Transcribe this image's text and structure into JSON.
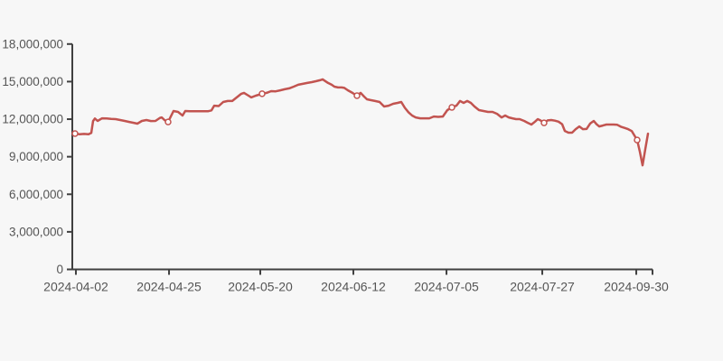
{
  "page": {
    "background": "#f7f7f7"
  },
  "chart_data": {
    "type": "line",
    "title": "",
    "xlabel": "",
    "ylabel": "",
    "ylim": [
      0,
      18000000
    ],
    "grid": false,
    "legend": "none",
    "line_color": "#c25450",
    "marker_fill": "#ffffff",
    "axis_color": "#404040",
    "label_color": "#555555",
    "background": "#f7f7f7",
    "y_ticks": [
      {
        "value": 0,
        "label": "0"
      },
      {
        "value": 3000000,
        "label": "3,000,000"
      },
      {
        "value": 6000000,
        "label": "6,000,000"
      },
      {
        "value": 9000000,
        "label": "9,000,000"
      },
      {
        "value": 12000000,
        "label": "12,000,000"
      },
      {
        "value": 15000000,
        "label": "15,000,000"
      },
      {
        "value": 18000000,
        "label": "18,000,000"
      }
    ],
    "x_ticks": [
      {
        "pos": 0.62,
        "label": "2024-04-02"
      },
      {
        "pos": 16.67,
        "label": "2024-04-25"
      },
      {
        "pos": 32.4,
        "label": "2024-05-20"
      },
      {
        "pos": 48.44,
        "label": "2024-06-12"
      },
      {
        "pos": 64.49,
        "label": "2024-07-05"
      },
      {
        "pos": 81.0,
        "label": "2024-07-27"
      },
      {
        "pos": 97.2,
        "label": "2024-09-30"
      }
    ],
    "labeled_points": [
      {
        "date": "2024-04-02",
        "value": 10850000
      },
      {
        "date": "2024-04-25",
        "value": 11780000
      },
      {
        "date": "2024-05-20",
        "value": 14030000
      },
      {
        "date": "2024-06-12",
        "value": 13880000
      },
      {
        "date": "2024-07-05",
        "value": 12940000
      },
      {
        "date": "2024-07-27",
        "value": 11710000
      },
      {
        "date": "2024-09-30",
        "value": 10340000
      }
    ],
    "points": [
      [
        0.47,
        10850000,
        1
      ],
      [
        1.25,
        10800000
      ],
      [
        2.02,
        10820000
      ],
      [
        2.8,
        10800000
      ],
      [
        3.27,
        10900000
      ],
      [
        3.58,
        11850000
      ],
      [
        3.89,
        12050000
      ],
      [
        4.36,
        11860000
      ],
      [
        5.14,
        12070000
      ],
      [
        5.92,
        12050000
      ],
      [
        6.7,
        12020000
      ],
      [
        7.48,
        12000000
      ],
      [
        8.26,
        11930000
      ],
      [
        9.03,
        11860000
      ],
      [
        9.81,
        11780000
      ],
      [
        10.59,
        11710000
      ],
      [
        11.21,
        11640000
      ],
      [
        11.99,
        11860000
      ],
      [
        12.77,
        11930000
      ],
      [
        13.55,
        11850000
      ],
      [
        14.33,
        11860000
      ],
      [
        15.11,
        12100000
      ],
      [
        15.42,
        12140000
      ],
      [
        15.89,
        11930000
      ],
      [
        16.51,
        11780000,
        1
      ],
      [
        17.45,
        12650000
      ],
      [
        18.22,
        12580000
      ],
      [
        19.0,
        12290000
      ],
      [
        19.47,
        12650000
      ],
      [
        20.25,
        12630000
      ],
      [
        21.03,
        12630000
      ],
      [
        21.81,
        12630000
      ],
      [
        22.59,
        12630000
      ],
      [
        23.36,
        12630000
      ],
      [
        23.99,
        12700000
      ],
      [
        24.45,
        13080000
      ],
      [
        25.23,
        13050000
      ],
      [
        26.01,
        13370000
      ],
      [
        26.79,
        13450000
      ],
      [
        27.57,
        13450000
      ],
      [
        28.35,
        13740000
      ],
      [
        29.13,
        14030000
      ],
      [
        29.6,
        14100000
      ],
      [
        30.37,
        13880000
      ],
      [
        30.84,
        13740000
      ],
      [
        31.62,
        13880000
      ],
      [
        32.71,
        14030000,
        1
      ],
      [
        33.49,
        14100000
      ],
      [
        34.27,
        14240000
      ],
      [
        35.05,
        14220000
      ],
      [
        35.83,
        14300000
      ],
      [
        36.6,
        14390000
      ],
      [
        37.38,
        14460000
      ],
      [
        38.16,
        14600000
      ],
      [
        38.94,
        14750000
      ],
      [
        39.72,
        14820000
      ],
      [
        40.5,
        14890000
      ],
      [
        41.28,
        14960000
      ],
      [
        42.06,
        15040000
      ],
      [
        42.68,
        15110000
      ],
      [
        43.15,
        15180000
      ],
      [
        43.61,
        15040000
      ],
      [
        44.08,
        14890000
      ],
      [
        44.7,
        14750000
      ],
      [
        45.17,
        14600000
      ],
      [
        45.79,
        14530000
      ],
      [
        46.42,
        14530000
      ],
      [
        46.88,
        14500000
      ],
      [
        47.51,
        14300000
      ],
      [
        48.29,
        14100000
      ],
      [
        49.07,
        13880000,
        1
      ],
      [
        49.69,
        14100000
      ],
      [
        50.31,
        13800000
      ],
      [
        50.78,
        13590000
      ],
      [
        51.4,
        13520000
      ],
      [
        52.18,
        13450000
      ],
      [
        52.96,
        13370000
      ],
      [
        53.74,
        13010000
      ],
      [
        54.52,
        13080000
      ],
      [
        55.3,
        13230000
      ],
      [
        56.07,
        13300000
      ],
      [
        56.7,
        13370000
      ],
      [
        57.32,
        12900000
      ],
      [
        57.94,
        12550000
      ],
      [
        58.57,
        12290000
      ],
      [
        59.19,
        12140000
      ],
      [
        59.97,
        12070000
      ],
      [
        60.75,
        12070000
      ],
      [
        61.53,
        12070000
      ],
      [
        62.31,
        12210000
      ],
      [
        63.08,
        12180000
      ],
      [
        63.86,
        12210000
      ],
      [
        64.64,
        12720000
      ],
      [
        65.42,
        12940000,
        1
      ],
      [
        66.2,
        13080000
      ],
      [
        66.82,
        13450000
      ],
      [
        67.45,
        13300000
      ],
      [
        68.07,
        13450000
      ],
      [
        68.69,
        13300000
      ],
      [
        69.31,
        13010000
      ],
      [
        70.09,
        12720000
      ],
      [
        70.87,
        12650000
      ],
      [
        71.65,
        12580000
      ],
      [
        72.43,
        12580000
      ],
      [
        73.21,
        12430000
      ],
      [
        73.99,
        12140000
      ],
      [
        74.61,
        12290000
      ],
      [
        75.23,
        12140000
      ],
      [
        75.86,
        12070000
      ],
      [
        76.48,
        12000000
      ],
      [
        77.1,
        12000000
      ],
      [
        77.88,
        11860000
      ],
      [
        78.5,
        11710000
      ],
      [
        79.13,
        11570000
      ],
      [
        79.75,
        11800000
      ],
      [
        80.22,
        12000000
      ],
      [
        80.69,
        11900000
      ],
      [
        81.31,
        11710000,
        1
      ],
      [
        81.93,
        11900000
      ],
      [
        82.55,
        11930000
      ],
      [
        83.18,
        11880000
      ],
      [
        83.8,
        11800000
      ],
      [
        84.42,
        11600000
      ],
      [
        84.89,
        11060000
      ],
      [
        85.51,
        10920000
      ],
      [
        86.14,
        10920000
      ],
      [
        86.76,
        11200000
      ],
      [
        87.38,
        11420000
      ],
      [
        88.01,
        11200000
      ],
      [
        88.63,
        11220000
      ],
      [
        89.25,
        11650000
      ],
      [
        89.88,
        11860000
      ],
      [
        90.34,
        11600000
      ],
      [
        90.81,
        11420000
      ],
      [
        91.43,
        11490000
      ],
      [
        92.06,
        11570000
      ],
      [
        92.68,
        11570000
      ],
      [
        93.3,
        11570000
      ],
      [
        93.93,
        11550000
      ],
      [
        94.55,
        11400000
      ],
      [
        95.17,
        11300000
      ],
      [
        95.79,
        11200000
      ],
      [
        96.42,
        11050000
      ],
      [
        96.88,
        10700000
      ],
      [
        97.35,
        10340000,
        1
      ],
      [
        97.82,
        9400000
      ],
      [
        98.29,
        8310000
      ],
      [
        98.75,
        9600000
      ],
      [
        99.22,
        10840000
      ]
    ]
  }
}
